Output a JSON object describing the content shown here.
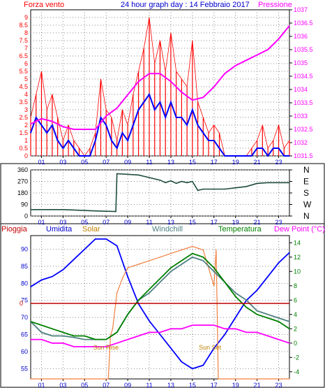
{
  "header": {
    "left_title": "Forza vento",
    "center_title": "24 hour graph day : 14 Febbraio 2017",
    "right_title": "Pressione"
  },
  "colors": {
    "wind_gust": "#ff0000",
    "wind_avg": "#0000ff",
    "pressure": "#ff00ff",
    "direction": "#1e4d3c",
    "humidity": "#0000ff",
    "solar": "#f08040",
    "windchill": "#4d8080",
    "temperature": "#008000",
    "dewpoint": "#ff00ff",
    "rain": "#c00000",
    "left_axis": "#ff0000",
    "right_axis": "#ff00ff"
  },
  "chart_data": [
    {
      "type": "line",
      "title": "24 hour graph day : 14 Febbraio 2017",
      "x_ticks": [
        "01",
        "03",
        "05",
        "07",
        "09",
        "11",
        "13",
        "15",
        "17",
        "19",
        "21",
        "23"
      ],
      "xlim": [
        0,
        24
      ],
      "y_left": {
        "label": "Forza vento",
        "ylim": [
          0,
          9.5
        ],
        "ticks": [
          "0",
          "0.5",
          "1",
          "1.5",
          "2",
          "2.5",
          "3",
          "3.5",
          "4",
          "4.5",
          "5",
          "5.5",
          "6",
          "6.5",
          "7",
          "7.5",
          "8",
          "8.5",
          "9"
        ]
      },
      "y_right": {
        "label": "Pressione",
        "ylim": [
          1031.5,
          1037
        ],
        "ticks": [
          "1031.5",
          "1032",
          "1032.5",
          "1033",
          "1033.5",
          "1034",
          "1034.5",
          "1035",
          "1035.5",
          "1036",
          "1036.5",
          "1037"
        ]
      },
      "grid": true,
      "series": [
        {
          "key": "wind_gust",
          "axis": "left",
          "x": [
            0,
            0.5,
            1,
            1.5,
            2,
            2.5,
            3,
            3.5,
            4,
            4.5,
            5,
            5.5,
            6,
            6.5,
            7,
            7.5,
            8,
            8.5,
            9,
            9.5,
            10,
            10.5,
            11,
            11.5,
            12,
            12.5,
            13,
            13.5,
            14,
            14.5,
            15,
            15.5,
            16,
            16.5,
            17,
            17.5,
            18,
            19,
            20,
            20.5,
            21,
            21.5,
            22,
            22.5,
            23,
            23.5,
            24
          ],
          "values": [
            2.5,
            4,
            5.5,
            3,
            4,
            2.5,
            1,
            2,
            1,
            0.5,
            0,
            0.5,
            1.5,
            5,
            3,
            2.5,
            1,
            3,
            2,
            4,
            5.5,
            7,
            9,
            6,
            7.5,
            5.5,
            8,
            5.5,
            5,
            4.5,
            7.5,
            3.5,
            2.5,
            1.5,
            2,
            1.5,
            0,
            0,
            0,
            0.5,
            1,
            2,
            0.5,
            1,
            2,
            0.5,
            1
          ]
        },
        {
          "key": "wind_avg",
          "axis": "left",
          "x": [
            0,
            0.5,
            1,
            1.5,
            2,
            2.5,
            3,
            3.5,
            4,
            4.5,
            5,
            5.5,
            6,
            6.5,
            7,
            7.5,
            8,
            8.5,
            9,
            9.5,
            10,
            10.5,
            11,
            11.5,
            12,
            12.5,
            13,
            13.5,
            14,
            14.5,
            15,
            15.5,
            16,
            16.5,
            17,
            17.5,
            18,
            19,
            20,
            20.5,
            21,
            21.5,
            22,
            22.5,
            23,
            23.5,
            24
          ],
          "values": [
            1.5,
            2.5,
            2,
            1.5,
            2,
            1,
            0.5,
            1,
            0.5,
            0,
            0,
            0,
            1,
            2.5,
            2,
            1,
            0.5,
            1.5,
            1,
            2,
            3,
            3.5,
            4,
            3,
            3.5,
            2.5,
            3.5,
            2.5,
            2.5,
            2,
            3,
            2,
            1.5,
            1,
            1,
            0.5,
            0,
            0,
            0,
            0,
            0.5,
            0.5,
            0,
            0.5,
            0.5,
            0,
            0
          ]
        },
        {
          "key": "pressure",
          "axis": "right",
          "x": [
            0,
            1,
            2,
            3,
            4,
            5,
            6,
            7,
            8,
            9,
            10,
            11,
            12,
            13,
            14,
            15,
            16,
            17,
            18,
            19,
            20,
            21,
            22,
            23,
            24
          ],
          "values": [
            1032.7,
            1032.9,
            1032.8,
            1032.6,
            1032.5,
            1032.5,
            1032.5,
            1033.0,
            1033.3,
            1033.8,
            1034.3,
            1034.6,
            1034.6,
            1034.3,
            1033.9,
            1033.6,
            1033.7,
            1034.1,
            1034.6,
            1034.9,
            1035.1,
            1035.3,
            1035.5,
            1035.9,
            1036.4
          ]
        }
      ]
    },
    {
      "type": "line",
      "x_ticks": [
        "01",
        "03",
        "05",
        "07",
        "09",
        "11",
        "13",
        "15",
        "17",
        "19",
        "21",
        "23"
      ],
      "xlim": [
        0,
        24
      ],
      "y_left": {
        "ylim": [
          0,
          360
        ],
        "ticks": [
          "0",
          "90",
          "180",
          "270",
          "360"
        ]
      },
      "y_right": {
        "ticks": [
          "N",
          "W",
          "S",
          "E",
          "N"
        ]
      },
      "grid": true,
      "series": [
        {
          "key": "direction",
          "x": [
            0,
            3,
            6,
            7.9,
            8,
            10,
            11,
            12,
            12.5,
            13,
            13.5,
            14,
            14.5,
            15,
            15.5,
            16,
            17,
            18,
            19,
            20,
            21,
            22,
            23,
            24
          ],
          "values": [
            50,
            50,
            40,
            35,
            330,
            320,
            300,
            280,
            260,
            275,
            255,
            270,
            260,
            270,
            200,
            210,
            210,
            210,
            220,
            230,
            255,
            260,
            260,
            260
          ]
        }
      ]
    },
    {
      "type": "line",
      "x_ticks": [
        "01",
        "03",
        "05",
        "07",
        "09",
        "11",
        "13",
        "15",
        "17",
        "19",
        "21",
        "23"
      ],
      "xlim": [
        0,
        24
      ],
      "y_left": {
        "label": "Umidita",
        "ylim": [
          52,
          94
        ],
        "ticks": [
          "55",
          "60",
          "65",
          "70",
          "75",
          "80",
          "85",
          "90"
        ]
      },
      "y_right": {
        "label": "Dew Point (°C)",
        "ylim": [
          -5,
          15
        ],
        "ticks": [
          "-4",
          "-2",
          "0",
          "2",
          "4",
          "6",
          "8",
          "10",
          "12",
          "14"
        ]
      },
      "labels": [
        "Pioggia",
        "Solar",
        "Windchill",
        "Temperatura"
      ],
      "annotations": [
        "Sun Rise",
        "Sun Set"
      ],
      "rain_marker_label": "0",
      "grid": true,
      "series": [
        {
          "key": "humidity",
          "axis": "left",
          "x": [
            0,
            1,
            2,
            3,
            4,
            5,
            6,
            7,
            8,
            9,
            10,
            11,
            12,
            13,
            14,
            15,
            16,
            17,
            18,
            19,
            20,
            21,
            22,
            23,
            24
          ],
          "values": [
            79,
            81,
            82,
            84,
            87,
            90,
            93,
            93,
            91,
            82,
            74,
            69,
            65,
            61,
            57,
            55,
            56,
            61,
            65,
            70,
            75,
            78,
            82,
            86,
            89
          ]
        },
        {
          "key": "solar",
          "axis": "right",
          "x": [
            0,
            7.2,
            7.4,
            7.6,
            8,
            8.5,
            9,
            10,
            11,
            12,
            13,
            14,
            15,
            16,
            17,
            17.2,
            17.4,
            24
          ],
          "values": [
            -5,
            -5,
            1,
            2,
            7,
            9,
            10.5,
            11,
            11.5,
            12,
            12.5,
            13,
            13.5,
            13,
            8,
            13,
            -5,
            -5
          ]
        },
        {
          "key": "windchill",
          "axis": "right",
          "x": [
            0,
            1,
            2,
            3,
            4,
            5,
            6,
            7,
            8,
            9,
            10,
            11,
            12,
            13,
            14,
            15,
            16,
            17,
            18,
            19,
            20,
            21,
            22,
            23,
            24
          ],
          "values": [
            3,
            1.5,
            1,
            1,
            0.8,
            0.5,
            0.5,
            0.5,
            1.5,
            4,
            6,
            7,
            8.5,
            10,
            11,
            12,
            11.5,
            10,
            8.5,
            7,
            6,
            4.5,
            4,
            3.5,
            3
          ]
        },
        {
          "key": "temperature",
          "axis": "right",
          "x": [
            0,
            1,
            2,
            3,
            4,
            5,
            6,
            7,
            8,
            9,
            10,
            11,
            12,
            13,
            14,
            15,
            16,
            17,
            18,
            19,
            20,
            21,
            22,
            23,
            24
          ],
          "values": [
            3,
            2.5,
            2,
            1.5,
            1,
            1,
            0.5,
            0.5,
            1.5,
            4,
            6,
            7.5,
            9,
            10.5,
            11.5,
            12.5,
            12,
            10.5,
            8.5,
            6.5,
            5,
            4,
            3.5,
            3,
            2
          ]
        },
        {
          "key": "dewpoint",
          "axis": "right",
          "x": [
            0,
            1,
            2,
            3,
            4,
            5,
            6,
            7,
            8,
            9,
            10,
            11,
            12,
            13,
            14,
            15,
            16,
            17,
            18,
            19,
            20,
            21,
            22,
            23,
            24
          ],
          "values": [
            0.5,
            0.5,
            0,
            0,
            -0.5,
            -0.5,
            -0.5,
            -0.5,
            0,
            0.5,
            1,
            1.5,
            1.5,
            2,
            2,
            2.5,
            2.5,
            2.5,
            2,
            2,
            1.5,
            1.5,
            1,
            0.5,
            0
          ]
        }
      ]
    }
  ]
}
